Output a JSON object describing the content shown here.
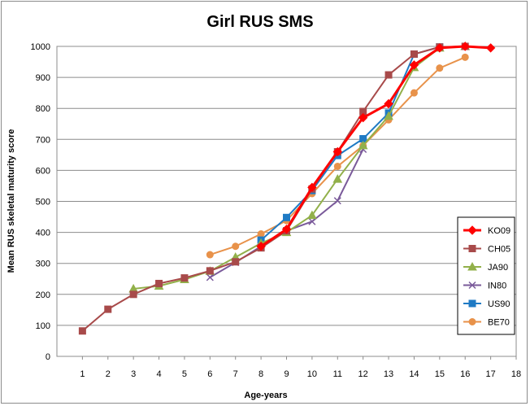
{
  "chart_data": {
    "type": "line",
    "title": "Girl RUS SMS",
    "xlabel": "Age-years",
    "ylabel": "Mean RUS skeletal maturity score",
    "xlim": [
      0,
      18
    ],
    "ylim": [
      0,
      1000
    ],
    "x_ticks": [
      "1",
      "2",
      "3",
      "4",
      "5",
      "6",
      "7",
      "8",
      "9",
      "10",
      "11",
      "12",
      "13",
      "14",
      "15",
      "16",
      "17",
      "18"
    ],
    "y_ticks": [
      "0",
      "100",
      "200",
      "300",
      "400",
      "500",
      "600",
      "700",
      "800",
      "900",
      "1000"
    ],
    "grid": "horizontal",
    "legend_position": "right",
    "series": [
      {
        "name": "KO09",
        "color": "#ff0000",
        "marker": "diamond",
        "x": [
          8,
          9,
          10,
          11,
          12,
          13,
          14,
          15,
          16,
          17
        ],
        "y": [
          355,
          410,
          545,
          660,
          770,
          815,
          940,
          995,
          1000,
          995
        ]
      },
      {
        "name": "CH05",
        "color": "#a84a4a",
        "marker": "square",
        "x": [
          1,
          2,
          3,
          4,
          5,
          6,
          7,
          8,
          9,
          10,
          11,
          12,
          13,
          14,
          15,
          16
        ],
        "y": [
          82,
          152,
          200,
          235,
          253,
          276,
          305,
          350,
          405,
          540,
          660,
          790,
          908,
          975,
          998,
          1000
        ]
      },
      {
        "name": "JA90",
        "color": "#92b04a",
        "marker": "triangle",
        "x": [
          3,
          4,
          5,
          6,
          7,
          8,
          9,
          10,
          11,
          12,
          13,
          14,
          15,
          16
        ],
        "y": [
          218,
          227,
          248,
          275,
          320,
          365,
          400,
          455,
          572,
          680,
          775,
          932,
          995,
          1000
        ]
      },
      {
        "name": "IN80",
        "color": "#7a5a9a",
        "marker": "x",
        "x": [
          6,
          7,
          8,
          9,
          10,
          11,
          12
        ],
        "y": [
          255,
          303,
          355,
          405,
          435,
          502,
          668
        ]
      },
      {
        "name": "US90",
        "color": "#1f7ac4",
        "marker": "square",
        "x": [
          8,
          9,
          10,
          11,
          12,
          13,
          14,
          15
        ],
        "y": [
          375,
          448,
          535,
          648,
          702,
          785,
          975,
          998
        ]
      },
      {
        "name": "BE70",
        "color": "#e8924a",
        "marker": "circle",
        "x": [
          6,
          7,
          8,
          9,
          10,
          11,
          12,
          13,
          14,
          15,
          16
        ],
        "y": [
          328,
          355,
          395,
          438,
          525,
          613,
          680,
          763,
          850,
          930,
          965
        ]
      }
    ]
  }
}
